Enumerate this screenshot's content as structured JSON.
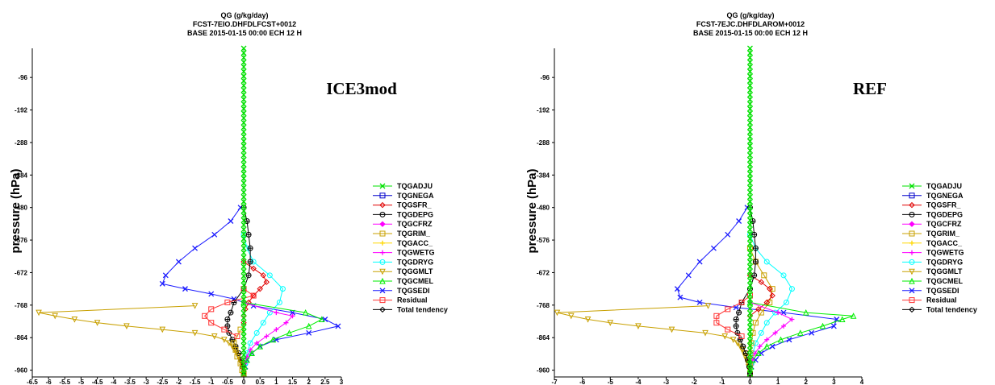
{
  "colors": {
    "TQGADJU": "#00e000",
    "TQGNEGA": "#0000cc",
    "TQGSFR_": "#e00000",
    "TQGDEPG": "#000000",
    "TQGCFRZ": "#ff00ff",
    "TQGRIM_": "#c8a000",
    "TQGACC_": "#ffd700",
    "TQGWETG": "#ff00ff",
    "TQGDRYG": "#00ffff",
    "TQGGMLT": "#c8a000",
    "TQGCMEL": "#00ee00",
    "TQGSEDI": "#1a1aff",
    "Residual": "#ff3333",
    "Total tendency": "#000000"
  },
  "chart_data": [
    {
      "type": "line",
      "title": "QG (g/kg/day)",
      "subtitle_1": "FCST-7EIO.DHFDLFCST+0012",
      "subtitle_2": "BASE 2015-01-15 00:00 ECH 12 H",
      "annotation": "ICE3mod",
      "ylabel": "pressure (hPa)",
      "xlim": [
        -6.5,
        3
      ],
      "ylim": [
        -980,
        -10
      ],
      "x_ticks": [
        -6.5,
        -6,
        -5.5,
        -5,
        -4.5,
        -4,
        -3.5,
        -3,
        -2.5,
        -2,
        -1.5,
        -1,
        -0.5,
        0,
        0.5,
        1,
        1.5,
        2,
        2.5,
        3
      ],
      "x_tick_labels": [
        "-6.5",
        "-6",
        "-5.5",
        "-5",
        "-4.5",
        "-4",
        "-3.5",
        "-3",
        "-2.5",
        "-2",
        "-1.5",
        "-1",
        "-0.5",
        "0",
        "0.5",
        "1",
        "1.5",
        "2",
        "2.5",
        "3"
      ],
      "y_ticks": [
        -96,
        -192,
        -288,
        -384,
        -480,
        -576,
        -672,
        -768,
        -864,
        -960
      ],
      "y_tick_labels": [
        "-96",
        "-192",
        "-288",
        "-384",
        "-480",
        "-576",
        "-672",
        "-768",
        "-864",
        "-960"
      ],
      "legend": [
        "TQGADJU",
        "TQGNEGA",
        "TQGSFR_",
        "TQGDEPG",
        "TQGCFRZ",
        "TQGRIM_",
        "TQGACC_",
        "TQGWETG",
        "TQGDRYG",
        "TQGGMLT",
        "TQGCMEL",
        "TQGSEDI",
        "Residual",
        "Total tendency"
      ],
      "series": [
        {
          "name": "TQGSEDI",
          "marker": "x",
          "y": [
            -480,
            -520,
            -560,
            -600,
            -640,
            -680,
            -705,
            -720,
            -735,
            -750,
            -770,
            -790,
            -810,
            -830,
            -850,
            -870,
            -890,
            -910,
            -930,
            -950,
            -970
          ],
          "x": [
            -0.1,
            -0.4,
            -0.9,
            -1.5,
            -2.0,
            -2.4,
            -2.5,
            -1.8,
            -1.0,
            -0.3,
            0.3,
            1.5,
            2.5,
            2.9,
            2.0,
            1.0,
            0.5,
            0.25,
            0.1,
            0.05,
            0.0
          ]
        },
        {
          "name": "TQGGMLT",
          "marker": "triangle-down",
          "y": [
            -770,
            -790,
            -800,
            -810,
            -820,
            -830,
            -840,
            -850,
            -860,
            -870,
            -880,
            -890,
            -900,
            -910,
            -920,
            -930,
            -940,
            -950,
            -960,
            -970
          ],
          "x": [
            -1.5,
            -6.3,
            -5.8,
            -5.2,
            -4.5,
            -3.6,
            -2.5,
            -1.5,
            -0.9,
            -0.6,
            -0.45,
            -0.35,
            -0.28,
            -0.22,
            -0.17,
            -0.12,
            -0.08,
            -0.05,
            -0.02,
            0.0
          ]
        },
        {
          "name": "TQGDRYG",
          "marker": "circle",
          "y": [
            -560,
            -600,
            -640,
            -680,
            -720,
            -760,
            -790,
            -820,
            -850,
            -880,
            -910,
            -940,
            -970
          ],
          "x": [
            0.0,
            0.1,
            0.3,
            0.8,
            1.2,
            1.1,
            0.8,
            0.6,
            0.4,
            0.2,
            0.1,
            0.05,
            0.0
          ]
        },
        {
          "name": "TQGSFR_",
          "marker": "diamond",
          "y": [
            -640,
            -660,
            -680,
            -700,
            -720,
            -740,
            -760,
            -780,
            -800,
            -820
          ],
          "x": [
            0.0,
            0.3,
            0.6,
            0.7,
            0.5,
            0.3,
            0.15,
            0.05,
            0.0,
            0.0
          ]
        },
        {
          "name": "TQGCMEL",
          "marker": "triangle-up",
          "y": [
            -760,
            -790,
            -810,
            -830,
            -850,
            -870,
            -890,
            -910,
            -930,
            -950,
            -970
          ],
          "x": [
            0.0,
            1.9,
            2.4,
            2.0,
            1.4,
            0.9,
            0.5,
            0.25,
            0.1,
            0.03,
            0.0
          ]
        },
        {
          "name": "TQGWETG",
          "marker": "plus",
          "y": [
            -760,
            -790,
            -800,
            -820,
            -840,
            -860,
            -880,
            -900,
            -920,
            -940,
            -960
          ],
          "x": [
            0.0,
            1.0,
            1.5,
            1.3,
            1.0,
            0.7,
            0.4,
            0.2,
            0.1,
            0.03,
            0.0
          ]
        },
        {
          "name": "TQGDEPG",
          "marker": "circle-cross",
          "y": [
            -480,
            -520,
            -560,
            -600,
            -640,
            -680,
            -720,
            -760,
            -790,
            -810,
            -830,
            -850,
            -870,
            -890,
            -910,
            -930,
            -950,
            -970
          ],
          "x": [
            0.0,
            0.1,
            0.15,
            0.2,
            0.2,
            0.15,
            0.0,
            -0.3,
            -0.4,
            -0.5,
            -0.5,
            -0.45,
            -0.35,
            -0.25,
            -0.15,
            -0.08,
            -0.03,
            0.0
          ]
        },
        {
          "name": "TQGRIM_",
          "marker": "square",
          "y": [
            -840,
            -860,
            -880,
            -900,
            -920,
            -940,
            -960,
            -970
          ],
          "x": [
            -0.1,
            -0.2,
            -0.3,
            -0.25,
            -0.2,
            -0.1,
            -0.05,
            0.0
          ]
        },
        {
          "name": "Residual",
          "marker": "square",
          "y": [
            -720,
            -740,
            -760,
            -780,
            -800,
            -820,
            -840,
            -860
          ],
          "x": [
            0.0,
            0.3,
            -0.5,
            -1.0,
            -1.2,
            -1.0,
            -0.6,
            -0.2
          ]
        },
        {
          "name": "TQGADJU",
          "marker": "x",
          "y": [
            -10,
            -100,
            -200,
            -300,
            -400,
            -500,
            -600,
            -700,
            -800,
            -900,
            -970
          ],
          "x": [
            0,
            0,
            0,
            0,
            0,
            0,
            0,
            0,
            0,
            0,
            0
          ]
        }
      ]
    },
    {
      "type": "line",
      "title": "QG (g/kg/day)",
      "subtitle_1": "FCST-7EJC.DHFDLAROM+0012",
      "subtitle_2": "BASE 2015-01-15 00:00 ECH 12 H",
      "annotation": "REF",
      "ylabel": "pressure (hPa)",
      "xlim": [
        -7,
        4
      ],
      "ylim": [
        -980,
        -10
      ],
      "x_ticks": [
        -7,
        -6,
        -5,
        -4,
        -3,
        -2,
        -1,
        0,
        1,
        2,
        3,
        4
      ],
      "x_tick_labels": [
        "-7",
        "-6",
        "-5",
        "-4",
        "-3",
        "-2",
        "-1",
        "0",
        "1",
        "2",
        "3",
        "4"
      ],
      "y_ticks": [
        -96,
        -192,
        -288,
        -384,
        -480,
        -576,
        -672,
        -768,
        -864,
        -960
      ],
      "y_tick_labels": [
        "-96",
        "-192",
        "-288",
        "-384",
        "-480",
        "-576",
        "-672",
        "-768",
        "-864",
        "-960"
      ],
      "legend": [
        "TQGADJU",
        "TQGNEGA",
        "TQGSFR_",
        "TQGDEPG",
        "TQGCFRZ",
        "TQGRIM_",
        "TQGACC_",
        "TQGWETG",
        "TQGDRYG",
        "TQGGMLT",
        "TQGCMEL",
        "TQGSEDI",
        "Residual",
        "Total tendency"
      ],
      "series": [
        {
          "name": "TQGSEDI",
          "marker": "x",
          "y": [
            -480,
            -520,
            -560,
            -600,
            -640,
            -680,
            -720,
            -745,
            -760,
            -775,
            -790,
            -810,
            -830,
            -850,
            -870,
            -890,
            -910,
            -930,
            -950,
            -970
          ],
          "x": [
            -0.1,
            -0.4,
            -0.8,
            -1.3,
            -1.8,
            -2.2,
            -2.6,
            -2.5,
            -1.8,
            -0.5,
            1.2,
            3.1,
            3.0,
            2.2,
            1.4,
            0.8,
            0.4,
            0.2,
            0.05,
            0.0
          ]
        },
        {
          "name": "TQGGMLT",
          "marker": "triangle-down",
          "y": [
            -770,
            -790,
            -800,
            -810,
            -820,
            -830,
            -840,
            -850,
            -860,
            -870,
            -880,
            -890,
            -900,
            -910,
            -920,
            -930,
            -940,
            -950,
            -960,
            -970
          ],
          "x": [
            -1.5,
            -6.9,
            -6.4,
            -5.8,
            -5.0,
            -4.0,
            -2.8,
            -1.6,
            -0.9,
            -0.6,
            -0.45,
            -0.35,
            -0.28,
            -0.22,
            -0.17,
            -0.12,
            -0.08,
            -0.05,
            -0.02,
            0.0
          ]
        },
        {
          "name": "TQGDRYG",
          "marker": "circle",
          "y": [
            -560,
            -600,
            -640,
            -680,
            -720,
            -760,
            -790,
            -820,
            -850,
            -880,
            -910,
            -940,
            -970
          ],
          "x": [
            0.0,
            0.2,
            0.6,
            1.2,
            1.5,
            1.3,
            0.9,
            0.6,
            0.4,
            0.2,
            0.1,
            0.05,
            0.0
          ]
        },
        {
          "name": "TQGRIM_",
          "marker": "square",
          "y": [
            -600,
            -640,
            -680,
            -720,
            -760,
            -790,
            -820,
            -850,
            -880,
            -910,
            -940,
            -970
          ],
          "x": [
            0.0,
            0.2,
            0.5,
            0.8,
            0.7,
            0.4,
            0.2,
            0.1,
            0.05,
            0.02,
            0.01,
            0.0
          ]
        },
        {
          "name": "TQGSFR_",
          "marker": "diamond",
          "y": [
            -680,
            -700,
            -720,
            -740,
            -760,
            -780,
            -800
          ],
          "x": [
            0.0,
            0.4,
            0.7,
            0.8,
            0.6,
            0.3,
            0.0
          ]
        },
        {
          "name": "TQGCMEL",
          "marker": "triangle-up",
          "y": [
            -760,
            -790,
            -800,
            -810,
            -830,
            -850,
            -870,
            -890,
            -910,
            -930,
            -950,
            -970
          ],
          "x": [
            0.0,
            2.0,
            3.7,
            3.3,
            2.6,
            1.8,
            1.1,
            0.6,
            0.3,
            0.1,
            0.03,
            0.0
          ]
        },
        {
          "name": "TQGWETG",
          "marker": "plus",
          "y": [
            -760,
            -790,
            -810,
            -830,
            -850,
            -870,
            -890,
            -910,
            -930,
            -950,
            -970
          ],
          "x": [
            0.0,
            1.0,
            1.5,
            1.2,
            0.9,
            0.6,
            0.35,
            0.18,
            0.08,
            0.02,
            0.0
          ]
        },
        {
          "name": "TQGDEPG",
          "marker": "circle-cross",
          "y": [
            -480,
            -520,
            -560,
            -600,
            -640,
            -680,
            -720,
            -760,
            -790,
            -810,
            -830,
            -850,
            -870,
            -890,
            -910,
            -930,
            -950,
            -970
          ],
          "x": [
            0.0,
            0.1,
            0.15,
            0.2,
            0.2,
            0.15,
            0.0,
            -0.3,
            -0.4,
            -0.5,
            -0.5,
            -0.45,
            -0.35,
            -0.25,
            -0.15,
            -0.08,
            -0.03,
            0.0
          ]
        },
        {
          "name": "Residual",
          "marker": "square",
          "y": [
            -740,
            -760,
            -780,
            -800,
            -820,
            -840,
            -860
          ],
          "x": [
            0.0,
            -0.3,
            -0.8,
            -1.2,
            -1.2,
            -0.8,
            -0.3
          ]
        },
        {
          "name": "TQGADJU",
          "marker": "x",
          "y": [
            -10,
            -100,
            -200,
            -300,
            -400,
            -500,
            -600,
            -700,
            -800,
            -900,
            -970
          ],
          "x": [
            0,
            0,
            0,
            0,
            0,
            0,
            0,
            0,
            0,
            0,
            0
          ]
        }
      ]
    }
  ]
}
